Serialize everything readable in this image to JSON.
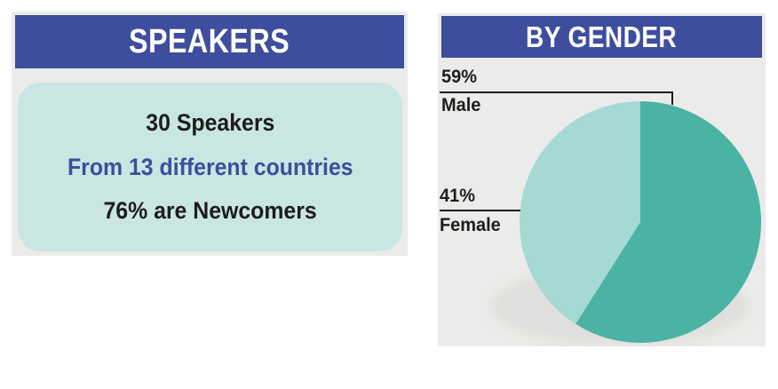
{
  "speakers_panel": {
    "title": "SPEAKERS",
    "stats": [
      {
        "text": "30 Speakers"
      },
      {
        "text": "From 13 different countries"
      },
      {
        "text": "76% are Newcomers"
      }
    ]
  },
  "gender_panel": {
    "title": "BY GENDER"
  },
  "chart_data": {
    "type": "pie",
    "title": "BY GENDER",
    "slices": [
      {
        "label": "Male",
        "value": 59,
        "display": "59%",
        "color": "#4bb3a4"
      },
      {
        "label": "Female",
        "value": 41,
        "display": "41%",
        "color": "#a4d9d4"
      }
    ],
    "total": 100,
    "start_angle_deg": 0,
    "direction": "clockwise",
    "labels_position": "left-callouts",
    "legend": "off"
  },
  "colors": {
    "header_blue": "#3e4d9c",
    "card_teal": "#c9e6e3",
    "male_teal": "#4bb3a4",
    "female_teal": "#a4d9d4",
    "panel_gray": "#ebebe9",
    "shadow_gray": "#e0dfdd",
    "text_dark": "#1d1d1b"
  }
}
